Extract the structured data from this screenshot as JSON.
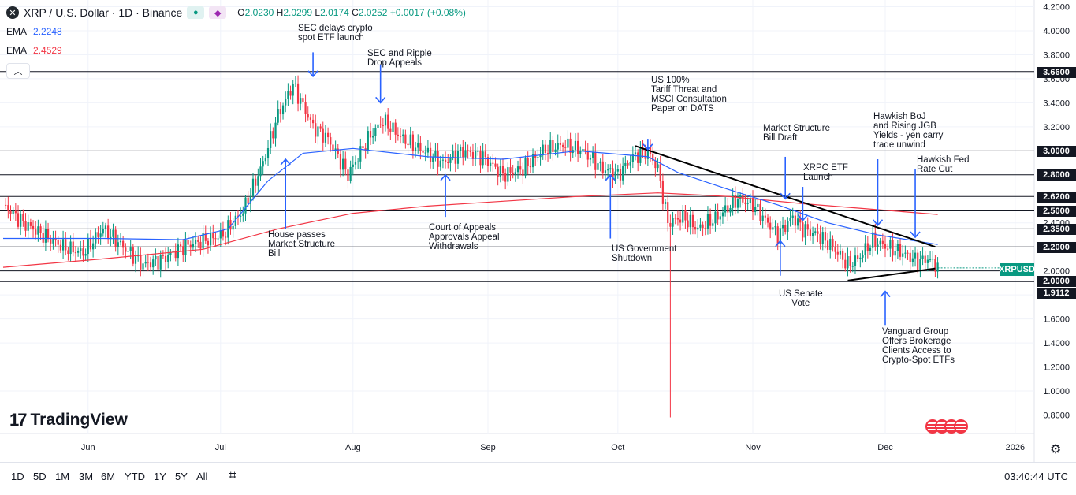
{
  "header": {
    "title": "XRP / U.S. Dollar · 1D · Binance",
    "ohlc": {
      "o_label": "O",
      "o": "2.0230",
      "h_label": "H",
      "h": "2.0299",
      "l_label": "L",
      "l": "2.0174",
      "c_label": "C",
      "c": "2.0252",
      "change": "+0.0017 (+0.08%)"
    }
  },
  "indicators": [
    {
      "name": "EMA",
      "value": "2.2248",
      "color": "#2962ff"
    },
    {
      "name": "EMA",
      "value": "2.4529",
      "color": "#f23645"
    }
  ],
  "chart_data": {
    "type": "candlestick",
    "title": "XRP / U.S. Dollar · 1D · Binance",
    "x_tick_labels": [
      "Jun",
      "Jul",
      "Aug",
      "Sep",
      "Oct",
      "Nov",
      "Dec",
      "2026"
    ],
    "y_ticks": [
      0.8,
      1.0,
      1.2,
      1.4,
      1.6,
      1.8,
      2.0,
      2.2,
      2.4,
      2.6,
      2.8,
      3.0,
      3.2,
      3.4,
      3.6,
      3.8,
      4.0,
      4.2
    ],
    "ylim": [
      0.7,
      4.25
    ],
    "horizontal_levels": [
      "3.6600",
      "3.0000",
      "2.8000",
      "2.6200",
      "2.5000",
      "2.3500",
      "2.2000",
      "2.0000",
      "1.9112"
    ],
    "last_price": "2.0252",
    "symbol_label": "XRPUSD",
    "keypoints": [
      [
        0,
        2.55
      ],
      [
        8,
        2.4
      ],
      [
        16,
        2.3
      ],
      [
        24,
        2.2
      ],
      [
        32,
        2.15
      ],
      [
        40,
        2.35
      ],
      [
        48,
        2.2
      ],
      [
        56,
        2.05
      ],
      [
        64,
        2.1
      ],
      [
        72,
        2.2
      ],
      [
        80,
        2.25
      ],
      [
        88,
        2.3
      ],
      [
        96,
        2.5
      ],
      [
        104,
        2.9
      ],
      [
        110,
        3.3
      ],
      [
        116,
        3.55
      ],
      [
        124,
        3.2
      ],
      [
        130,
        3.1
      ],
      [
        138,
        2.8
      ],
      [
        146,
        3.1
      ],
      [
        152,
        3.25
      ],
      [
        160,
        3.1
      ],
      [
        168,
        3.0
      ],
      [
        176,
        2.9
      ],
      [
        184,
        3.0
      ],
      [
        192,
        2.95
      ],
      [
        200,
        2.8
      ],
      [
        208,
        2.85
      ],
      [
        216,
        3.0
      ],
      [
        224,
        3.05
      ],
      [
        232,
        3.0
      ],
      [
        240,
        2.85
      ],
      [
        246,
        2.8
      ],
      [
        252,
        2.95
      ],
      [
        258,
        3.0
      ],
      [
        262,
        2.85
      ],
      [
        266,
        2.4
      ],
      [
        272,
        2.45
      ],
      [
        278,
        2.35
      ],
      [
        286,
        2.45
      ],
      [
        294,
        2.6
      ],
      [
        300,
        2.55
      ],
      [
        306,
        2.4
      ],
      [
        310,
        2.3
      ],
      [
        316,
        2.45
      ],
      [
        320,
        2.35
      ],
      [
        326,
        2.3
      ],
      [
        332,
        2.2
      ],
      [
        338,
        2.05
      ],
      [
        342,
        2.1
      ],
      [
        348,
        2.25
      ],
      [
        354,
        2.2
      ],
      [
        360,
        2.15
      ],
      [
        366,
        2.08
      ],
      [
        370,
        2.1
      ],
      [
        374,
        2.04
      ]
    ],
    "spike": {
      "day": 267,
      "low": 0.78
    },
    "ema_fast": [
      [
        0,
        2.27
      ],
      [
        40,
        2.27
      ],
      [
        72,
        2.26
      ],
      [
        90,
        2.35
      ],
      [
        106,
        2.75
      ],
      [
        120,
        2.98
      ],
      [
        140,
        3.02
      ],
      [
        170,
        2.95
      ],
      [
        200,
        2.93
      ],
      [
        230,
        3.0
      ],
      [
        258,
        2.95
      ],
      [
        270,
        2.82
      ],
      [
        290,
        2.68
      ],
      [
        310,
        2.55
      ],
      [
        330,
        2.4
      ],
      [
        350,
        2.3
      ],
      [
        374,
        2.22
      ]
    ],
    "ema_slow": [
      [
        0,
        2.03
      ],
      [
        40,
        2.1
      ],
      [
        80,
        2.18
      ],
      [
        110,
        2.35
      ],
      [
        140,
        2.48
      ],
      [
        170,
        2.54
      ],
      [
        200,
        2.58
      ],
      [
        230,
        2.62
      ],
      [
        262,
        2.65
      ],
      [
        290,
        2.62
      ],
      [
        320,
        2.56
      ],
      [
        350,
        2.51
      ],
      [
        374,
        2.47
      ]
    ],
    "trendlines": [
      {
        "from": [
          253,
          3.04
        ],
        "to": [
          373,
          2.2
        ]
      },
      {
        "from": [
          338,
          1.92
        ],
        "to": [
          373,
          2.02
        ]
      }
    ],
    "arrows": [
      {
        "day": 124,
        "from": 3.82,
        "to": 3.62
      },
      {
        "day": 151,
        "from": 3.72,
        "to": 3.4
      },
      {
        "day": 113,
        "from": 2.35,
        "to": 2.93
      },
      {
        "day": 177,
        "from": 2.45,
        "to": 2.8
      },
      {
        "day": 258,
        "from": 3.1,
        "to": 3.01
      },
      {
        "day": 243,
        "from": 2.27,
        "to": 2.8
      },
      {
        "day": 313,
        "from": 2.95,
        "to": 2.6
      },
      {
        "day": 320,
        "from": 2.7,
        "to": 2.42
      },
      {
        "day": 311,
        "from": 1.96,
        "to": 2.25
      },
      {
        "day": 350,
        "from": 2.93,
        "to": 2.38
      },
      {
        "day": 365,
        "from": 2.85,
        "to": 2.28
      },
      {
        "day": 353,
        "from": 1.55,
        "to": 1.83
      }
    ]
  },
  "annotations": [
    {
      "text": "SEC delays crypto\nspot ETF launch"
    },
    {
      "text": "SEC and Ripple\nDrop Appeals"
    },
    {
      "text": "US 100%\nTariff Threat and\nMSCI Consultation\nPaper on DATS"
    },
    {
      "text": "Market Structure\nBill Draft"
    },
    {
      "text": "XRPC ETF\nLaunch"
    },
    {
      "text": "Hawkish BoJ\nand Rising JGB\nYields - yen carry\ntrade unwind"
    },
    {
      "text": "Hawkish Fed\nRate Cut"
    },
    {
      "text": "House passes\nMarket Structure\nBill"
    },
    {
      "text": "Court of Appeals\nApprovals Appeal\nWithdrawals"
    },
    {
      "text": "US Government\nShutdown"
    },
    {
      "text": "US Senate\nVote"
    },
    {
      "text": "Vanguard Group\nOffers Brokerage\nClients Access to\nCrypto-Spot ETFs"
    }
  ],
  "bottom_bar": {
    "timeframes": [
      "1D",
      "5D",
      "1M",
      "3M",
      "6M",
      "YTD",
      "1Y",
      "5Y",
      "All"
    ],
    "clock": "03:40:44 UTC"
  },
  "branding": {
    "logo_text": "TradingView"
  },
  "colors": {
    "up": "#089981",
    "down": "#f23645",
    "ema_fast": "#2962ff",
    "ema_slow": "#f23645",
    "annotation_arrow": "#2962ff"
  }
}
